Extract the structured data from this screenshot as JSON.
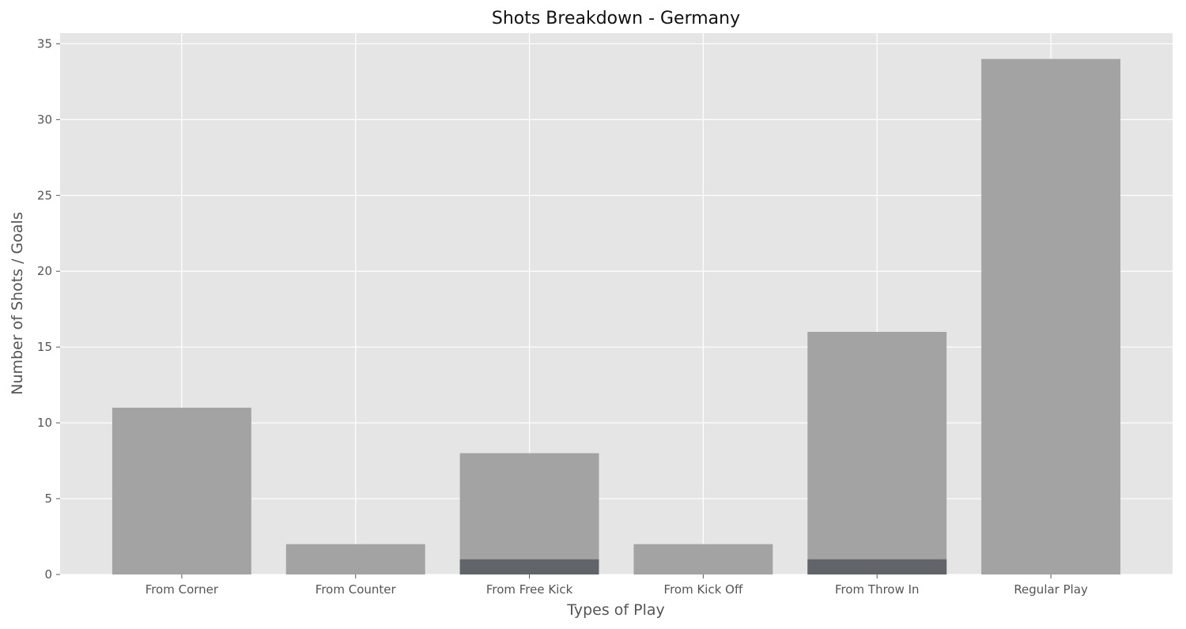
{
  "chart_data": {
    "type": "bar",
    "title": "Shots Breakdown - Germany",
    "xlabel": "Types of Play",
    "ylabel": "Number of Shots / Goals",
    "categories": [
      "From Corner",
      "From Counter",
      "From Free Kick",
      "From Kick Off",
      "From Throw In",
      "Regular Play"
    ],
    "series": [
      {
        "values": [
          11,
          2,
          8,
          2,
          16,
          34
        ],
        "color": "#a3a3a4"
      },
      {
        "values": [
          0,
          0,
          1,
          0,
          1,
          0
        ],
        "color": "#616569"
      }
    ],
    "ylim": [
      0,
      35.7
    ],
    "yticks": [
      0,
      5,
      10,
      15,
      20,
      25,
      30,
      35
    ],
    "grid": true,
    "legend": "none",
    "colors": {
      "plot_background": "#e5e5e5",
      "grid": "#ffffff",
      "text": "#555555",
      "title": "#111111"
    }
  }
}
